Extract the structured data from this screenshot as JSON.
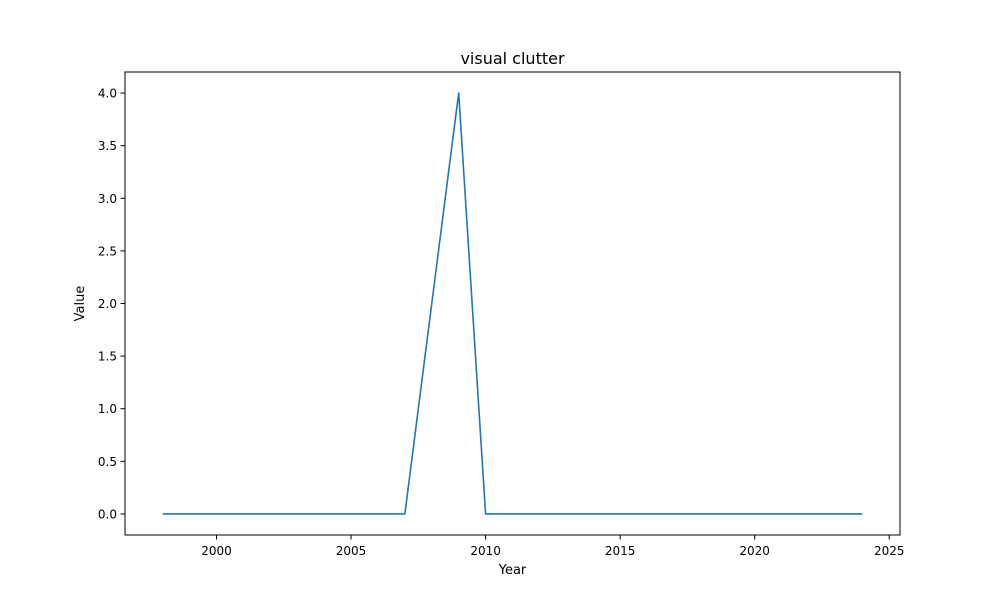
{
  "chart_data": {
    "type": "line",
    "title": "visual clutter",
    "xlabel": "Year",
    "ylabel": "Value",
    "xlim": [
      1996.6,
      2025.4
    ],
    "ylim": [
      -0.2,
      4.2
    ],
    "xticks": [
      2000,
      2005,
      2010,
      2015,
      2020,
      2025
    ],
    "yticks": [
      0.0,
      0.5,
      1.0,
      1.5,
      2.0,
      2.5,
      3.0,
      3.5,
      4.0
    ],
    "grid": false,
    "legend": "none",
    "series": [
      {
        "color": "#1f77b4",
        "x": [
          1998,
          1999,
          2000,
          2001,
          2002,
          2003,
          2004,
          2005,
          2006,
          2007,
          2008,
          2009,
          2010,
          2011,
          2012,
          2013,
          2014,
          2015,
          2016,
          2017,
          2018,
          2019,
          2020,
          2021,
          2022,
          2023,
          2024
        ],
        "y": [
          0,
          0,
          0,
          0,
          0,
          0,
          0,
          0,
          0,
          0,
          2,
          4,
          0,
          0,
          0,
          0,
          0,
          0,
          0,
          0,
          0,
          0,
          0,
          0,
          0,
          0,
          0
        ]
      }
    ]
  }
}
